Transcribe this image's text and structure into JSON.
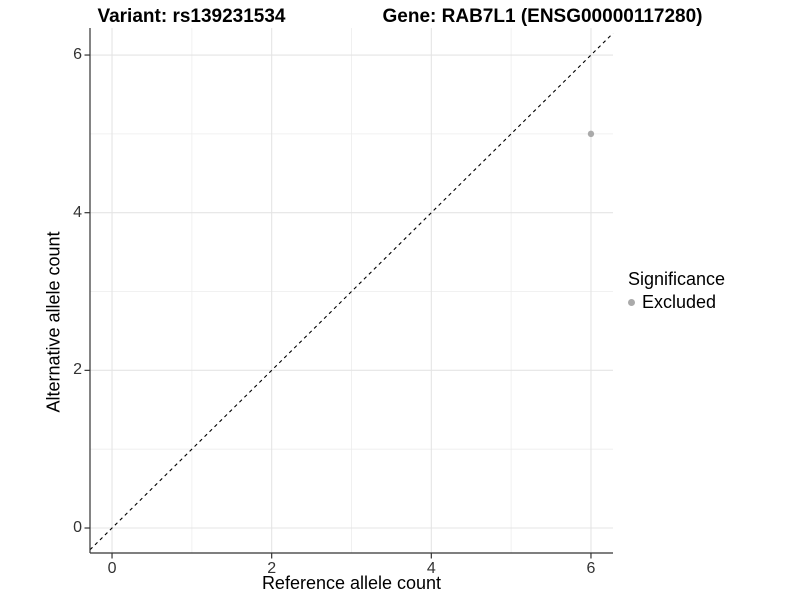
{
  "title": {
    "variant": "Variant: rs139231534",
    "gene": "Gene: RAB7L1 (ENSG00000117280)"
  },
  "chart_data": {
    "type": "scatter",
    "title": "Variant: rs139231534   Gene: RAB7L1 (ENSG00000117280)",
    "xlabel": "Reference allele count",
    "ylabel": "Alternative allele count",
    "xlim": [
      -0.276,
      6.276
    ],
    "ylim": [
      -0.317,
      6.343
    ],
    "x_ticks": [
      0,
      2,
      4,
      6
    ],
    "y_ticks": [
      0,
      2,
      4,
      6
    ],
    "grid_major": [
      0,
      2,
      4,
      6
    ],
    "grid_minor": [
      1,
      3,
      5
    ],
    "grid_on": true,
    "points": [
      {
        "x": 6,
        "y": 5,
        "series": "Excluded"
      }
    ],
    "identity_line": {
      "slope": 1,
      "intercept": 0,
      "style": "dashed"
    },
    "legend": {
      "title": "Significance",
      "position": "right",
      "items": [
        {
          "label": "Excluded",
          "color": "#aaaaaa"
        }
      ]
    },
    "colors": {
      "point": "#aaaaaa",
      "grid_major": "#e4e4e4",
      "grid_minor": "#ededed",
      "axis": "#333333",
      "identity_line": "#000000",
      "background": "#ffffff"
    }
  }
}
